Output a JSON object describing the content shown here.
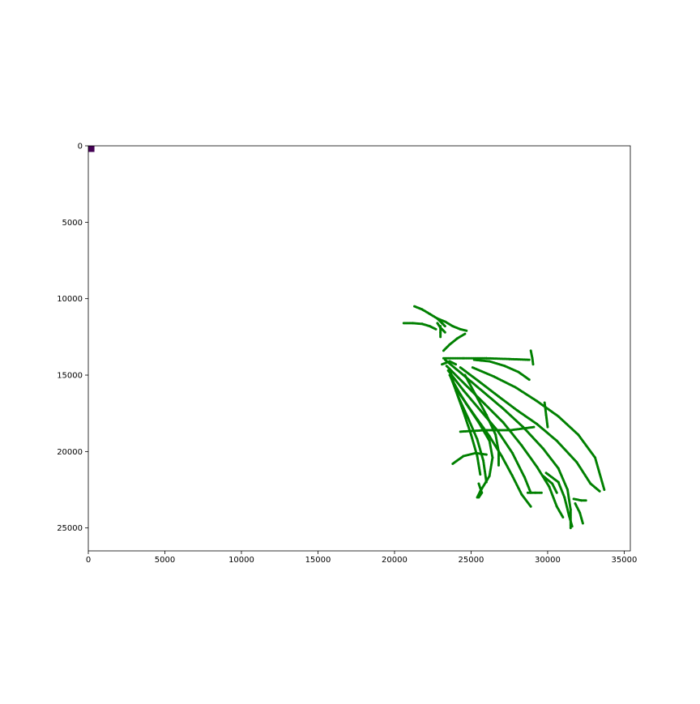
{
  "chart_data": {
    "type": "scatter",
    "title": "",
    "xlabel": "",
    "ylabel": "",
    "xlim": [
      0,
      35400
    ],
    "ylim": [
      26500,
      0
    ],
    "y_inverted": true,
    "grid": false,
    "x_ticks": [
      {
        "value": 0,
        "label": "0"
      },
      {
        "value": 5000,
        "label": "5000"
      },
      {
        "value": 10000,
        "label": "10000"
      },
      {
        "value": 15000,
        "label": "15000"
      },
      {
        "value": 20000,
        "label": "20000"
      },
      {
        "value": 25000,
        "label": "25000"
      },
      {
        "value": 30000,
        "label": "30000"
      },
      {
        "value": 35000,
        "label": "35000"
      }
    ],
    "y_ticks": [
      {
        "value": 0,
        "label": "0"
      },
      {
        "value": 5000,
        "label": "5000"
      },
      {
        "value": 10000,
        "label": "10000"
      },
      {
        "value": 15000,
        "label": "15000"
      },
      {
        "value": 20000,
        "label": "20000"
      },
      {
        "value": 25000,
        "label": "25000"
      }
    ],
    "marker": {
      "x_range": [
        0,
        400
      ],
      "y_range": [
        0,
        400
      ],
      "color": "#440154"
    },
    "series": [
      {
        "color": "#008000",
        "tracks": [
          [
            [
              21300,
              10500
            ],
            [
              21800,
              10700
            ],
            [
              22300,
              11000
            ],
            [
              22800,
              11300
            ],
            [
              23100,
              11600
            ],
            [
              23300,
              11800
            ]
          ],
          [
            [
              20600,
              11600
            ],
            [
              21200,
              11600
            ],
            [
              21800,
              11650
            ],
            [
              22300,
              11800
            ],
            [
              22700,
              12000
            ]
          ],
          [
            [
              22800,
              11300
            ],
            [
              23300,
              11500
            ],
            [
              23800,
              11800
            ],
            [
              24300,
              12000
            ],
            [
              24700,
              12100
            ]
          ],
          [
            [
              22800,
              11600
            ],
            [
              23000,
              11900
            ],
            [
              23300,
              12200
            ]
          ],
          [
            [
              23200,
              13400
            ],
            [
              23600,
              13000
            ],
            [
              24100,
              12600
            ],
            [
              24600,
              12300
            ]
          ],
          [
            [
              23200,
              13900
            ],
            [
              24500,
              13900
            ],
            [
              26000,
              13900
            ],
            [
              27500,
              13950
            ],
            [
              28800,
              14000
            ]
          ],
          [
            [
              25200,
              14000
            ],
            [
              26200,
              14100
            ],
            [
              27200,
              14400
            ],
            [
              28100,
              14800
            ],
            [
              28800,
              15300
            ]
          ],
          [
            [
              28900,
              13400
            ],
            [
              29000,
              13900
            ],
            [
              29050,
              14300
            ]
          ],
          [
            [
              23100,
              14300
            ],
            [
              23600,
              14100
            ],
            [
              24000,
              14300
            ]
          ],
          [
            [
              25100,
              14500
            ],
            [
              26500,
              15100
            ],
            [
              27900,
              15800
            ],
            [
              29300,
              16700
            ],
            [
              30700,
              17700
            ],
            [
              32000,
              18900
            ],
            [
              33100,
              20400
            ],
            [
              33700,
              22500
            ]
          ],
          [
            [
              24300,
              14500
            ],
            [
              25500,
              15400
            ],
            [
              26800,
              16400
            ],
            [
              28000,
              17300
            ],
            [
              29300,
              18200
            ],
            [
              30600,
              19300
            ],
            [
              31900,
              20700
            ],
            [
              32800,
              22100
            ],
            [
              33400,
              22600
            ]
          ],
          [
            [
              29800,
              16800
            ],
            [
              29900,
              17600
            ],
            [
              30000,
              18400
            ]
          ],
          [
            [
              23300,
              14000
            ],
            [
              24500,
              15000
            ],
            [
              25800,
              16100
            ],
            [
              27100,
              17200
            ],
            [
              28400,
              18400
            ],
            [
              29700,
              19800
            ],
            [
              30700,
              21100
            ],
            [
              31300,
              22500
            ],
            [
              31500,
              23800
            ],
            [
              31500,
              25000
            ]
          ],
          [
            [
              23400,
              14400
            ],
            [
              24600,
              15600
            ],
            [
              25900,
              16900
            ],
            [
              27100,
              18100
            ],
            [
              28300,
              19600
            ],
            [
              29300,
              21000
            ],
            [
              30100,
              22300
            ],
            [
              30600,
              23600
            ],
            [
              31000,
              24300
            ]
          ],
          [
            [
              23500,
              14700
            ],
            [
              24500,
              16000
            ],
            [
              25600,
              17300
            ],
            [
              26700,
              18600
            ],
            [
              27700,
              20100
            ],
            [
              28500,
              21700
            ],
            [
              28900,
              22700
            ]
          ],
          [
            [
              23600,
              15000
            ],
            [
              24300,
              16300
            ],
            [
              25200,
              17600
            ],
            [
              26200,
              19000
            ],
            [
              27000,
              20300
            ],
            [
              27700,
              21600
            ],
            [
              28300,
              22800
            ],
            [
              28900,
              23600
            ]
          ],
          [
            [
              23700,
              15200
            ],
            [
              24200,
              16500
            ],
            [
              24800,
              17800
            ],
            [
              25400,
              19200
            ],
            [
              25800,
              20600
            ],
            [
              26000,
              22000
            ]
          ],
          [
            [
              23600,
              14600
            ],
            [
              24000,
              16000
            ],
            [
              24500,
              17400
            ],
            [
              25000,
              18900
            ],
            [
              25400,
              20300
            ],
            [
              25600,
              21500
            ]
          ],
          [
            [
              24600,
              15000
            ],
            [
              25300,
              16300
            ],
            [
              26000,
              17600
            ],
            [
              26600,
              18900
            ],
            [
              26800,
              20000
            ],
            [
              26800,
              20900
            ]
          ],
          [
            [
              23900,
              15600
            ],
            [
              24700,
              16900
            ],
            [
              25500,
              18100
            ],
            [
              26200,
              19300
            ],
            [
              26400,
              20400
            ],
            [
              26200,
              21600
            ],
            [
              25600,
              22600
            ],
            [
              25400,
              23000
            ]
          ],
          [
            [
              24300,
              18700
            ],
            [
              26000,
              18600
            ],
            [
              27600,
              18600
            ],
            [
              29100,
              18400
            ]
          ],
          [
            [
              23800,
              20800
            ],
            [
              24500,
              20300
            ],
            [
              25300,
              20100
            ],
            [
              26000,
              20200
            ]
          ],
          [
            [
              29900,
              21400
            ],
            [
              30700,
              22000
            ],
            [
              31100,
              23000
            ],
            [
              31400,
              24200
            ],
            [
              31600,
              24900
            ]
          ],
          [
            [
              29700,
              21600
            ],
            [
              30300,
              22100
            ],
            [
              30600,
              22700
            ]
          ],
          [
            [
              31700,
              23100
            ],
            [
              32200,
              23200
            ],
            [
              32500,
              23200
            ]
          ],
          [
            [
              31800,
              23400
            ],
            [
              32100,
              24000
            ],
            [
              32300,
              24700
            ]
          ],
          [
            [
              28700,
              22700
            ],
            [
              29200,
              22700
            ],
            [
              29600,
              22700
            ]
          ],
          [
            [
              25500,
              22100
            ],
            [
              25700,
              22700
            ],
            [
              25500,
              23000
            ]
          ],
          [
            [
              23000,
              11800
            ],
            [
              23000,
              12200
            ],
            [
              23000,
              12500
            ]
          ]
        ]
      }
    ]
  }
}
